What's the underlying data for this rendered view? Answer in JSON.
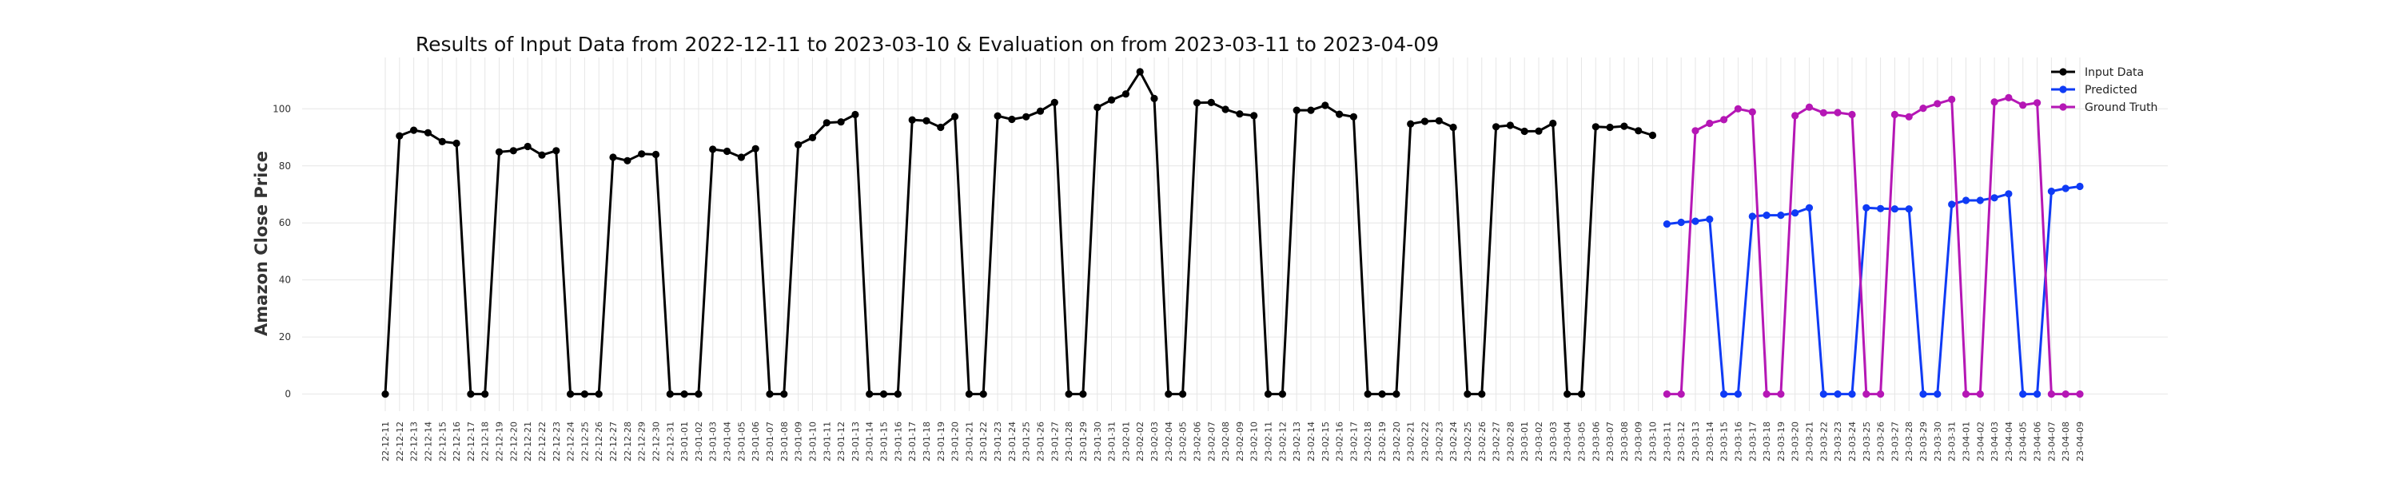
{
  "chart_data": {
    "type": "line",
    "title": "Results of Input Data from 2022-12-11 to 2023-03-10 & Evaluation on from 2023-03-11 to 2023-04-09",
    "xlabel": "",
    "ylabel": "Amazon Close Price",
    "ylim": [
      -6,
      118
    ],
    "yticks": [
      0,
      20,
      40,
      60,
      80,
      100
    ],
    "grid": true,
    "legend_position": "top-right",
    "start_date": "2022-12-11",
    "end_date": "2023-04-09",
    "series": [
      {
        "name": "Input Data",
        "color": "#000000",
        "start": "2022-12-11",
        "values": [
          0,
          90.5,
          92.5,
          91.6,
          88.5,
          87.9,
          0,
          0,
          84.9,
          85.3,
          86.8,
          83.8,
          85.3,
          0,
          0,
          0,
          83,
          81.8,
          84.2,
          84,
          0,
          0,
          0,
          85.8,
          85.1,
          83,
          86,
          0,
          0,
          87.4,
          89.9,
          95.1,
          95.4,
          98,
          0,
          0,
          0,
          96.1,
          95.8,
          93.5,
          97.3,
          0,
          0,
          97.5,
          96.3,
          97.2,
          99.2,
          102.2,
          0,
          0,
          100.5,
          103.1,
          105.2,
          113,
          103.6,
          0,
          0,
          102.1,
          102.2,
          99.8,
          98.2,
          97.6,
          0,
          0,
          99.5,
          99.5,
          101.2,
          98.1,
          97.2,
          0,
          0,
          0,
          94.7,
          95.6,
          95.8,
          93.5,
          0,
          0,
          93.7,
          94.2,
          92.1,
          92.2,
          94.9,
          0,
          0,
          93.7,
          93.5,
          93.9,
          92.3,
          90.7
        ]
      },
      {
        "name": "Predicted",
        "color": "#0f3bf5",
        "start": "2023-03-11",
        "values": [
          59.6,
          60.2,
          60.6,
          61.3,
          0,
          0,
          62.3,
          62.7,
          62.7,
          63.5,
          65.3,
          0,
          0,
          0,
          65.3,
          65,
          64.9,
          64.9,
          0,
          0,
          66.5,
          67.9,
          67.9,
          68.8,
          70.2,
          0,
          0,
          71.1,
          72.1,
          72.8
        ]
      },
      {
        "name": "Ground Truth",
        "color": "#b517b5",
        "start": "2023-03-11",
        "values": [
          0,
          0,
          92.3,
          94.9,
          96.2,
          100,
          98.9,
          0,
          0,
          97.6,
          100.6,
          98.6,
          98.7,
          98,
          0,
          0,
          98,
          97.2,
          100.2,
          101.8,
          103.3,
          0,
          0,
          102.4,
          103.9,
          101.3,
          102.1,
          0,
          0,
          0
        ]
      }
    ]
  }
}
